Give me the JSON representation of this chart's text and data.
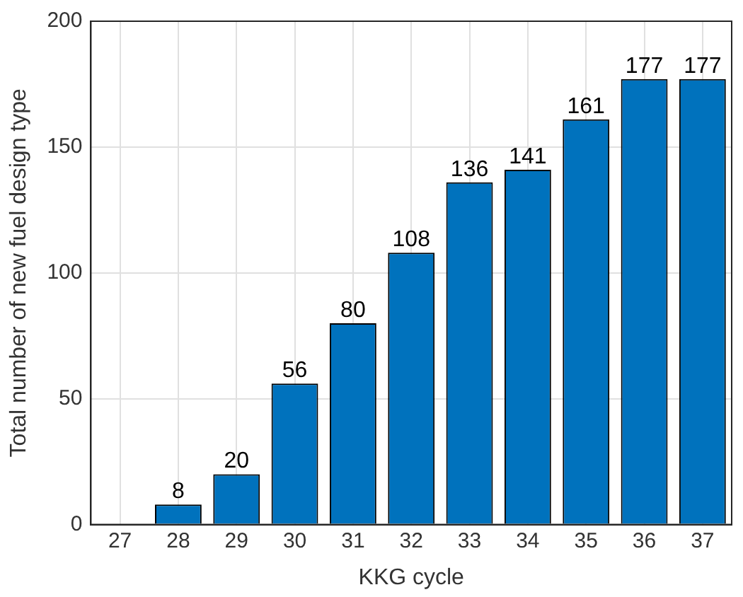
{
  "chart_data": {
    "type": "bar",
    "xlabel": "KKG cycle",
    "ylabel": "Total number of new fuel design type",
    "categories": [
      "27",
      "28",
      "29",
      "30",
      "31",
      "32",
      "33",
      "34",
      "35",
      "36",
      "37"
    ],
    "values": [
      null,
      8,
      20,
      56,
      80,
      108,
      136,
      141,
      161,
      177,
      177
    ],
    "color": "#0072bd",
    "ylim": [
      0,
      200
    ],
    "yticks": [
      0,
      50,
      100,
      150,
      200
    ],
    "grid": true,
    "data_labels": true
  }
}
